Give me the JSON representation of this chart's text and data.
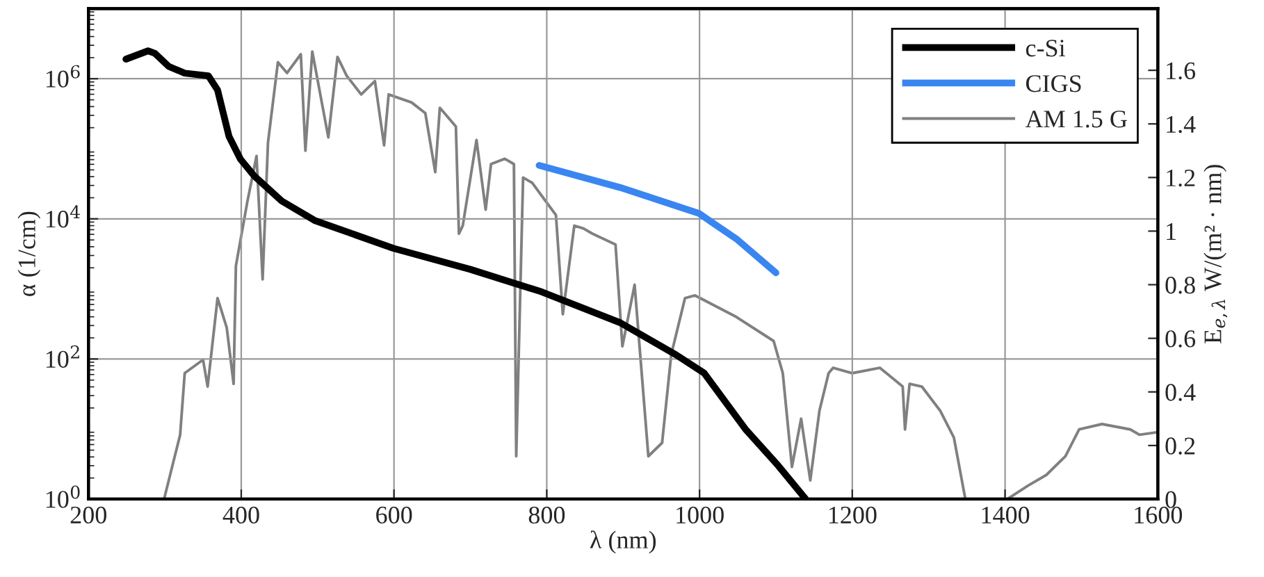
{
  "chart_data": {
    "type": "line",
    "xlabel": "λ (nm)",
    "ylabel": "α (1/cm)",
    "y2label": "E$_{e,λ}$ W/(m² · nm)",
    "log": "y",
    "grid": true,
    "legend": "top right",
    "line_style": "solid",
    "marker": "none",
    "xlim": [
      200,
      1600
    ],
    "xticks": [
      200,
      400,
      600,
      800,
      1000,
      1200,
      1400,
      1600
    ],
    "ylim": [
      1,
      10000000
    ],
    "yticks": [
      {
        "value": 1,
        "label": "10$^{0}$"
      },
      {
        "value": 100,
        "label": "10$^{2}$"
      },
      {
        "value": 10000,
        "label": "10$^{4}$"
      },
      {
        "value": 1000000,
        "label": "10$^{6}$"
      }
    ],
    "y2lim": [
      0,
      1.83
    ],
    "y2ticks": [
      0,
      0.2,
      0.4,
      0.6,
      0.8,
      1,
      1.2,
      1.4,
      1.6
    ],
    "series": [
      {
        "name": "c-Si",
        "color": "#000000",
        "x": [
          249,
          278,
          287,
          305,
          326,
          357,
          369,
          384,
          399,
          417,
          453,
          496,
          599,
          700,
          793,
          896,
          969,
          1006,
          1060,
          1103,
          1139
        ],
        "values": [
          1900000,
          2500000,
          2300000,
          1500000,
          1200000,
          1100000,
          690000,
          150000,
          71000,
          41000,
          18000,
          9500,
          3800,
          1900,
          910,
          330,
          115,
          63,
          10,
          3,
          1
        ]
      },
      {
        "name": "CIGS",
        "color": "#3a86f0",
        "x": [
          790,
          896,
          999,
          1048,
          1100
        ],
        "values": [
          58000,
          28000,
          12000,
          5200,
          1700
        ]
      },
      {
        "name": "AM 1.5 G",
        "color": "#808080",
        "axis": "y2",
        "x": [
          297,
          299,
          320,
          326,
          350,
          356,
          369,
          381,
          390,
          393,
          408,
          420,
          428,
          435,
          448,
          460,
          478,
          484,
          493,
          514,
          526,
          538,
          557,
          575,
          587,
          593,
          623,
          641,
          654,
          660,
          681,
          685,
          690,
          708,
          720,
          727,
          745,
          757,
          760,
          769,
          781,
          799,
          812,
          821,
          836,
          848,
          860,
          890,
          899,
          915,
          933,
          951,
          963,
          981,
          994,
          1048,
          1097,
          1109,
          1121,
          1133,
          1145,
          1157,
          1169,
          1175,
          1200,
          1236,
          1266,
          1269,
          1275,
          1291,
          1315,
          1333,
          1348,
          1403,
          1430,
          1454,
          1479,
          1497,
          1527,
          1564,
          1576,
          1600
        ],
        "values": [
          0,
          0,
          0.24,
          0.47,
          0.52,
          0.42,
          0.75,
          0.64,
          0.43,
          0.87,
          1.11,
          1.28,
          0.82,
          1.33,
          1.63,
          1.59,
          1.66,
          1.3,
          1.67,
          1.35,
          1.65,
          1.58,
          1.51,
          1.56,
          1.32,
          1.51,
          1.48,
          1.44,
          1.22,
          1.46,
          1.39,
          0.99,
          1.02,
          1.34,
          1.08,
          1.25,
          1.27,
          1.25,
          0.16,
          1.2,
          1.18,
          1.11,
          1.06,
          0.69,
          1.02,
          1.01,
          0.99,
          0.95,
          0.57,
          0.8,
          0.16,
          0.21,
          0.54,
          0.75,
          0.76,
          0.68,
          0.59,
          0.47,
          0.12,
          0.3,
          0.07,
          0.33,
          0.47,
          0.49,
          0.47,
          0.49,
          0.42,
          0.26,
          0.43,
          0.42,
          0.33,
          0.23,
          0,
          0,
          0.05,
          0.09,
          0.16,
          0.26,
          0.28,
          0.26,
          0.24,
          0.25
        ]
      }
    ]
  }
}
